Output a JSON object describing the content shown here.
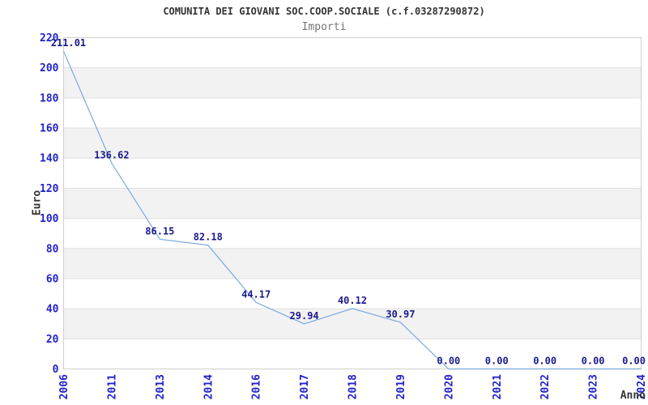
{
  "chart_data": {
    "type": "line",
    "title": "COMUNITA DEI GIOVANI SOC.COOP.SOCIALE (c.f.03287290872)",
    "subtitle": "Importi",
    "xlabel": "Anno",
    "ylabel": "Euro",
    "categories": [
      "2006",
      "2011",
      "2013",
      "2014",
      "2016",
      "2017",
      "2018",
      "2019",
      "2020",
      "2021",
      "2022",
      "2023",
      "2024"
    ],
    "values": [
      211.01,
      136.62,
      86.15,
      82.18,
      44.17,
      29.94,
      40.12,
      30.97,
      0,
      0,
      0,
      0,
      0
    ],
    "point_labels": [
      "211.01",
      "136.62",
      "86.15",
      "82.18",
      "44.17",
      "29.94",
      "40.12",
      "30.97",
      "0.00",
      "0.00",
      "0.00",
      "0.00",
      "0.00"
    ],
    "ylim": [
      0,
      220
    ],
    "y_tick_step": 20,
    "grid": "horizontal-alternating-bands",
    "legend_position": "none",
    "colors": {
      "line": "#7aa9e0",
      "tick_label": "#2222cc",
      "point_label": "#1a1a8c",
      "band_gray": "#f2f2f2",
      "gridline": "#e0e0e0",
      "border": "#d0d0d0",
      "title": "#333333",
      "subtitle": "#757575",
      "axis_title": "#333333",
      "background": "#ffffff"
    }
  }
}
